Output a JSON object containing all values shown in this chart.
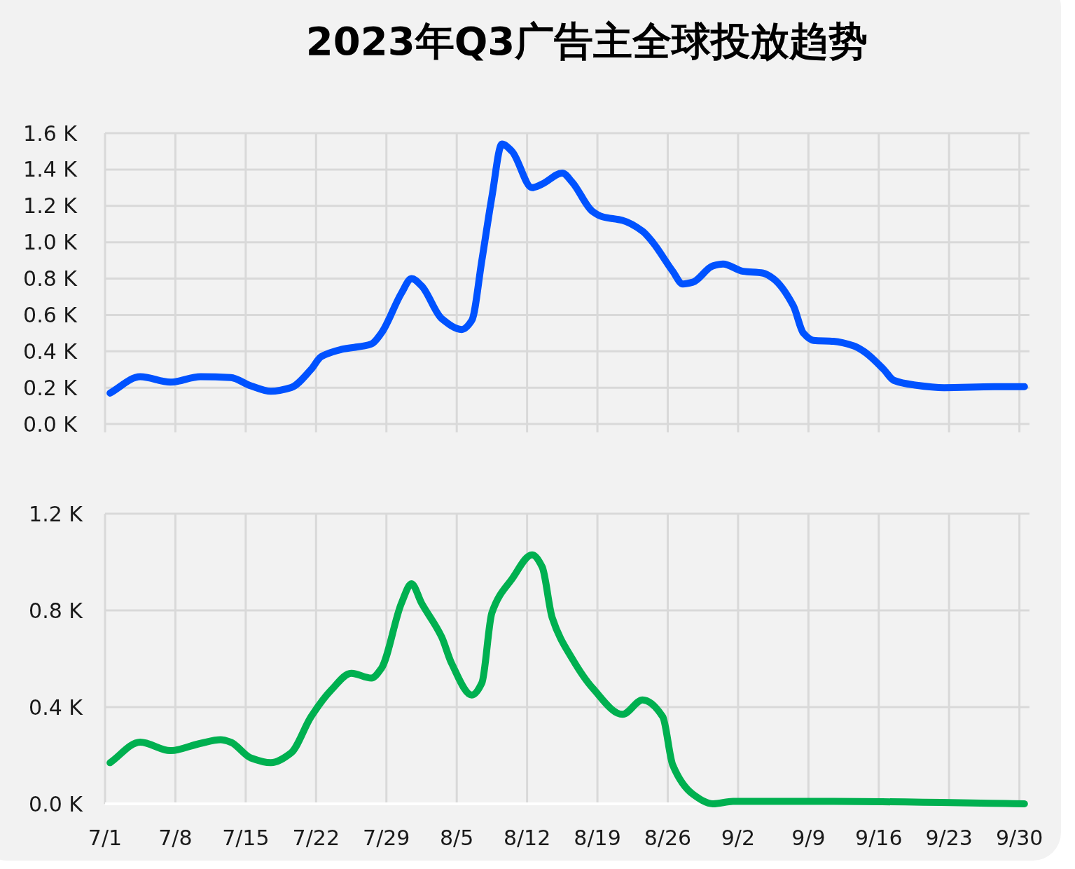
{
  "chart_data": [
    {
      "type": "line",
      "title": "2023年Q3广告主全球投放趋势",
      "x": [
        "2023-07-01T12:00",
        "2023-07-04T12:00",
        "2023-07-07T12:00",
        "2023-07-10T12:00",
        "2023-07-13T12:00",
        "2023-07-15T12:00",
        "2023-07-17T12:00",
        "2023-07-19T12:00",
        "2023-07-21T12:00",
        "2023-07-22T12:00",
        "2023-07-24T12:00",
        "2023-07-27T12:00",
        "2023-07-28T12:00",
        "2023-07-30T12:00",
        "2023-07-31T12:00",
        "2023-08-01T12:00",
        "2023-08-03T12:00",
        "2023-08-05T12:00",
        "2023-08-06T12:00",
        "2023-08-07T12:00",
        "2023-08-08T12:00",
        "2023-08-09T12:00",
        "2023-08-10T12:00",
        "2023-08-12T12:00",
        "2023-08-13T12:00",
        "2023-08-15T12:00",
        "2023-08-16T12:00",
        "2023-08-18T12:00",
        "2023-08-19T12:00",
        "2023-08-21T12:00",
        "2023-08-23T12:00",
        "2023-08-24T12:00",
        "2023-08-26T12:00",
        "2023-08-27T12:00",
        "2023-08-28T12:00",
        "2023-08-30T12:00",
        "2023-08-31T12:00",
        "2023-09-02T12:00",
        "2023-09-04T12:00",
        "2023-09-05T12:00",
        "2023-09-07T12:00",
        "2023-09-08T12:00",
        "2023-09-09T12:00",
        "2023-09-11T12:00",
        "2023-09-13T12:00",
        "2023-09-14T12:00",
        "2023-09-16T12:00",
        "2023-09-17T12:00",
        "2023-09-19T12:00",
        "2023-09-22T12:00",
        "2023-09-27T12:00",
        "2023-09-30T12:00"
      ],
      "series": [
        {
          "color": "#0052ff",
          "values": [
            0.17,
            0.26,
            0.23,
            0.26,
            0.255,
            0.21,
            0.18,
            0.2,
            0.3,
            0.37,
            0.41,
            0.44,
            0.5,
            0.72,
            0.8,
            0.76,
            0.58,
            0.52,
            0.57,
            0.9,
            1.25,
            1.54,
            1.5,
            1.3,
            1.32,
            1.38,
            1.33,
            1.17,
            1.14,
            1.12,
            1.06,
            1.0,
            0.84,
            0.77,
            0.78,
            0.87,
            0.88,
            0.84,
            0.83,
            0.8,
            0.65,
            0.5,
            0.46,
            0.455,
            0.43,
            0.4,
            0.3,
            0.24,
            0.215,
            0.2,
            0.205,
            0.205
          ]
        }
      ],
      "xlim": [
        "2023-07-01",
        "2023-10-01"
      ],
      "xticks": [
        {
          "value": "2023-07-01",
          "label": null
        },
        {
          "value": "2023-07-08",
          "label": null
        },
        {
          "value": "2023-07-15",
          "label": null
        },
        {
          "value": "2023-07-22",
          "label": null
        },
        {
          "value": "2023-07-29",
          "label": null
        },
        {
          "value": "2023-08-05",
          "label": null
        },
        {
          "value": "2023-08-12",
          "label": null
        },
        {
          "value": "2023-08-19",
          "label": null
        },
        {
          "value": "2023-08-26",
          "label": null
        },
        {
          "value": "2023-09-02",
          "label": null
        },
        {
          "value": "2023-09-09",
          "label": null
        },
        {
          "value": "2023-09-16",
          "label": null
        },
        {
          "value": "2023-09-23",
          "label": null
        },
        {
          "value": "2023-09-30",
          "label": null
        }
      ],
      "ylim": [
        0,
        1.6
      ],
      "yticks": [
        {
          "value": 0,
          "label": "0.0 K"
        },
        {
          "value": 0.2,
          "label": "0.2 K"
        },
        {
          "value": 0.4,
          "label": "0.4 K"
        },
        {
          "value": 0.6,
          "label": "0.6 K"
        },
        {
          "value": 0.8,
          "label": "0.8 K"
        },
        {
          "value": 1.0,
          "label": "1.0 K"
        },
        {
          "value": 1.2,
          "label": "1.2 K"
        },
        {
          "value": 1.4,
          "label": "1.4 K"
        },
        {
          "value": 1.6,
          "label": "1.6 K"
        }
      ],
      "grid": true,
      "tick_labels": "y"
    },
    {
      "type": "line",
      "x": [
        "2023-07-01T12:00",
        "2023-07-04T12:00",
        "2023-07-07T12:00",
        "2023-07-10T12:00",
        "2023-07-12T12:00",
        "2023-07-13T12:00",
        "2023-07-15T12:00",
        "2023-07-17T12:00",
        "2023-07-19T12:00",
        "2023-07-21T12:00",
        "2023-07-23T12:00",
        "2023-07-25T12:00",
        "2023-07-27T12:00",
        "2023-07-28T12:00",
        "2023-07-30T12:00",
        "2023-07-31T12:00",
        "2023-08-01T12:00",
        "2023-08-03T12:00",
        "2023-08-04T12:00",
        "2023-08-06T12:00",
        "2023-08-07T12:00",
        "2023-08-08T12:00",
        "2023-08-10T12:00",
        "2023-08-12T12:00",
        "2023-08-13T12:00",
        "2023-08-14T12:00",
        "2023-08-16T12:00",
        "2023-08-18T12:00",
        "2023-08-21T12:00",
        "2023-08-23T12:00",
        "2023-08-25T12:00",
        "2023-08-26T12:00",
        "2023-08-28T12:00",
        "2023-08-30T12:00",
        "2023-09-01T12:00",
        "2023-09-11T12:00",
        "2023-09-30T12:00"
      ],
      "series": [
        {
          "color": "#00b050",
          "values": [
            0.17,
            0.255,
            0.22,
            0.25,
            0.265,
            0.255,
            0.19,
            0.17,
            0.21,
            0.36,
            0.47,
            0.54,
            0.52,
            0.56,
            0.83,
            0.91,
            0.83,
            0.69,
            0.58,
            0.45,
            0.5,
            0.79,
            0.93,
            1.03,
            0.98,
            0.77,
            0.6,
            0.48,
            0.37,
            0.43,
            0.36,
            0.16,
            0.04,
            0.0,
            0.01,
            0.01,
            0.0
          ]
        }
      ],
      "xlim": [
        "2023-07-01",
        "2023-10-01"
      ],
      "xticks": [
        {
          "value": "2023-07-01",
          "label": "7/1"
        },
        {
          "value": "2023-07-08",
          "label": "7/8"
        },
        {
          "value": "2023-07-15",
          "label": "7/15"
        },
        {
          "value": "2023-07-22",
          "label": "7/22"
        },
        {
          "value": "2023-07-29",
          "label": "7/29"
        },
        {
          "value": "2023-08-05",
          "label": "8/5"
        },
        {
          "value": "2023-08-12",
          "label": "8/12"
        },
        {
          "value": "2023-08-19",
          "label": "8/19"
        },
        {
          "value": "2023-08-26",
          "label": "8/26"
        },
        {
          "value": "2023-09-02",
          "label": "9/2"
        },
        {
          "value": "2023-09-09",
          "label": "9/9"
        },
        {
          "value": "2023-09-16",
          "label": "9/16"
        },
        {
          "value": "2023-09-23",
          "label": "9/23"
        },
        {
          "value": "2023-09-30",
          "label": "9/30"
        }
      ],
      "ylim": [
        0,
        1.2
      ],
      "yticks": [
        {
          "value": 0,
          "label": "0.0 K"
        },
        {
          "value": 0.4,
          "label": "0.4 K"
        },
        {
          "value": 0.8,
          "label": "0.8 K"
        },
        {
          "value": 1.2,
          "label": "1.2 K"
        }
      ],
      "grid": true
    }
  ]
}
